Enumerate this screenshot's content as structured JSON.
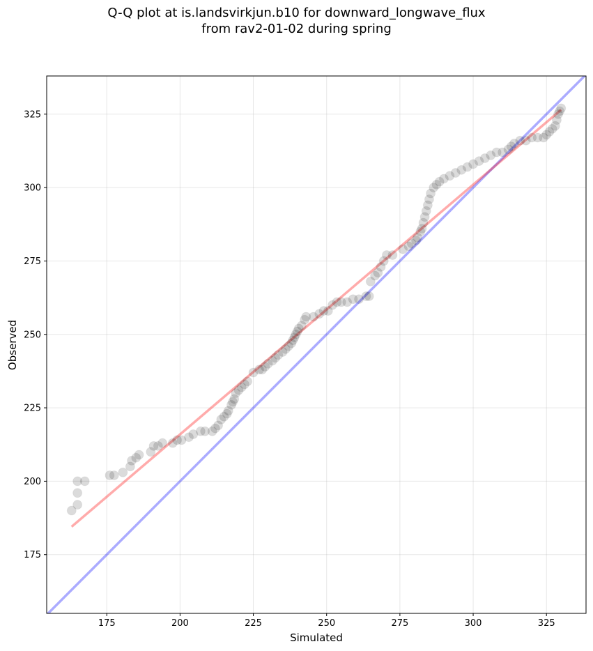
{
  "title_line1": "Q-Q plot at is.landsvirkjun.b10 for downward_longwave_flux",
  "title_line2": "from rav2-01-02 during spring",
  "chart_data": {
    "type": "scatter",
    "title": "Q-Q plot at is.landsvirkjun.b10 for downward_longwave_flux from rav2-01-02 during spring",
    "xlabel": "Simulated",
    "ylabel": "Observed",
    "xlim": [
      154.5,
      338.5
    ],
    "ylim": [
      155,
      338
    ],
    "xticks": [
      175,
      200,
      225,
      250,
      275,
      300,
      325
    ],
    "yticks": [
      175,
      200,
      225,
      250,
      275,
      300,
      325
    ],
    "grid": true,
    "colors": {
      "points": "#000000",
      "fit_line": "#ff0000",
      "one_to_one": "#0000ff"
    },
    "series": [
      {
        "points": [
          [
            163,
            190
          ],
          [
            165,
            192
          ],
          [
            165,
            196
          ],
          [
            165,
            200
          ],
          [
            167.5,
            200
          ],
          [
            176,
            202
          ],
          [
            177.5,
            202
          ],
          [
            180.5,
            203
          ],
          [
            183,
            205
          ],
          [
            183.5,
            207
          ],
          [
            185,
            208
          ],
          [
            186,
            209
          ],
          [
            190,
            210
          ],
          [
            191,
            212
          ],
          [
            192.5,
            212
          ],
          [
            194,
            213
          ],
          [
            197.5,
            213
          ],
          [
            199,
            214
          ],
          [
            200.5,
            214
          ],
          [
            203,
            215
          ],
          [
            204.5,
            216
          ],
          [
            207,
            217
          ],
          [
            208.5,
            217
          ],
          [
            211,
            217
          ],
          [
            212,
            218
          ],
          [
            213,
            219
          ],
          [
            214,
            221
          ],
          [
            215,
            222
          ],
          [
            216,
            223
          ],
          [
            216.5,
            224
          ],
          [
            217.5,
            226
          ],
          [
            218,
            227
          ],
          [
            218.5,
            228
          ],
          [
            219,
            230
          ],
          [
            220,
            231
          ],
          [
            221,
            232
          ],
          [
            222,
            233
          ],
          [
            223,
            234
          ],
          [
            225,
            237
          ],
          [
            227,
            238
          ],
          [
            228,
            238
          ],
          [
            229,
            239
          ],
          [
            230,
            240
          ],
          [
            231.5,
            241
          ],
          [
            232.5,
            242
          ],
          [
            233.5,
            243
          ],
          [
            235,
            244
          ],
          [
            236,
            245
          ],
          [
            237,
            246
          ],
          [
            238,
            247
          ],
          [
            238.5,
            248
          ],
          [
            239,
            249
          ],
          [
            239.5,
            250
          ],
          [
            240,
            251
          ],
          [
            240.5,
            252
          ],
          [
            241.5,
            253
          ],
          [
            242.5,
            255
          ],
          [
            243,
            256
          ],
          [
            245.5,
            256
          ],
          [
            247.5,
            257
          ],
          [
            249,
            258
          ],
          [
            250.5,
            258
          ],
          [
            252,
            260
          ],
          [
            253.5,
            261
          ],
          [
            255,
            261
          ],
          [
            257,
            261
          ],
          [
            259,
            262
          ],
          [
            261,
            262
          ],
          [
            263.5,
            263
          ],
          [
            264.5,
            263
          ],
          [
            265,
            268
          ],
          [
            266.5,
            270
          ],
          [
            267.5,
            271
          ],
          [
            268.5,
            273
          ],
          [
            269.5,
            275
          ],
          [
            270.5,
            277
          ],
          [
            272.5,
            277
          ],
          [
            276,
            279
          ],
          [
            278,
            280
          ],
          [
            279,
            281
          ],
          [
            280.5,
            282
          ],
          [
            281,
            283
          ],
          [
            282,
            285
          ],
          [
            282.5,
            286
          ],
          [
            283,
            288
          ],
          [
            283.5,
            290
          ],
          [
            284,
            292
          ],
          [
            284.5,
            294
          ],
          [
            285,
            296
          ],
          [
            285.5,
            298
          ],
          [
            286.5,
            300
          ],
          [
            287.5,
            301
          ],
          [
            288.5,
            302
          ],
          [
            290,
            303
          ],
          [
            292,
            304
          ],
          [
            294,
            305
          ],
          [
            296,
            306
          ],
          [
            298,
            307
          ],
          [
            300,
            308
          ],
          [
            302,
            309
          ],
          [
            304,
            310
          ],
          [
            306,
            311
          ],
          [
            308,
            312
          ],
          [
            310,
            312
          ],
          [
            312,
            313
          ],
          [
            313,
            314
          ],
          [
            314,
            315
          ],
          [
            316,
            316
          ],
          [
            318,
            316
          ],
          [
            320,
            317
          ],
          [
            322,
            317
          ],
          [
            324,
            317
          ],
          [
            325,
            318
          ],
          [
            326,
            319
          ],
          [
            327,
            320
          ],
          [
            328,
            321
          ],
          [
            328.5,
            323
          ],
          [
            329,
            325
          ],
          [
            329.5,
            326
          ],
          [
            330,
            327
          ]
        ]
      }
    ],
    "fit_line": {
      "x": [
        163,
        330
      ],
      "y": [
        184.5,
        326.5
      ]
    },
    "one_to_one_line": {
      "x": [
        154.5,
        338.5
      ],
      "y": [
        154.5,
        338.5
      ]
    }
  }
}
